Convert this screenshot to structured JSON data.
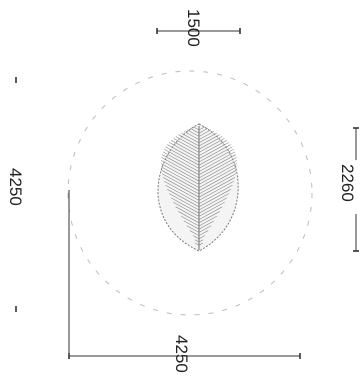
{
  "dimensions": {
    "top_width": "1500",
    "left_height": "4250",
    "right_height": "2260",
    "bottom_width": "4250"
  },
  "colors": {
    "dimension": "#333333",
    "boundary": "#bcbcbc",
    "leaf_outline": "#7a7a7a",
    "leaf_fill": "#f4f4f4"
  },
  "icons": {
    "leaf": "leaf-icon"
  }
}
